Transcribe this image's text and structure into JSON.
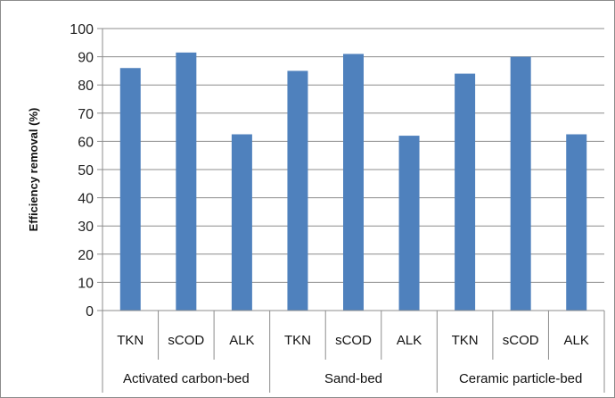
{
  "chart_data": {
    "type": "bar",
    "title": "",
    "xlabel": "",
    "ylabel": "Efficiency removal (%)",
    "ylim": [
      0,
      100
    ],
    "yticks": [
      0,
      10,
      20,
      30,
      40,
      50,
      60,
      70,
      80,
      90,
      100
    ],
    "grid": true,
    "legend": "none",
    "color": "#4f81bd",
    "categories": [
      "TKN",
      "sCOD",
      "ALK",
      "TKN",
      "sCOD",
      "ALK",
      "TKN",
      "sCOD",
      "ALK"
    ],
    "groups": [
      {
        "name": "Activated carbon-bed",
        "categories": [
          "TKN",
          "sCOD",
          "ALK"
        ]
      },
      {
        "name": "Sand-bed",
        "categories": [
          "TKN",
          "sCOD",
          "ALK"
        ]
      },
      {
        "name": "Ceramic particle-bed",
        "categories": [
          "TKN",
          "sCOD",
          "ALK"
        ]
      }
    ],
    "values": [
      86,
      91.5,
      62.5,
      85,
      91,
      62,
      84,
      90,
      62.5
    ]
  }
}
